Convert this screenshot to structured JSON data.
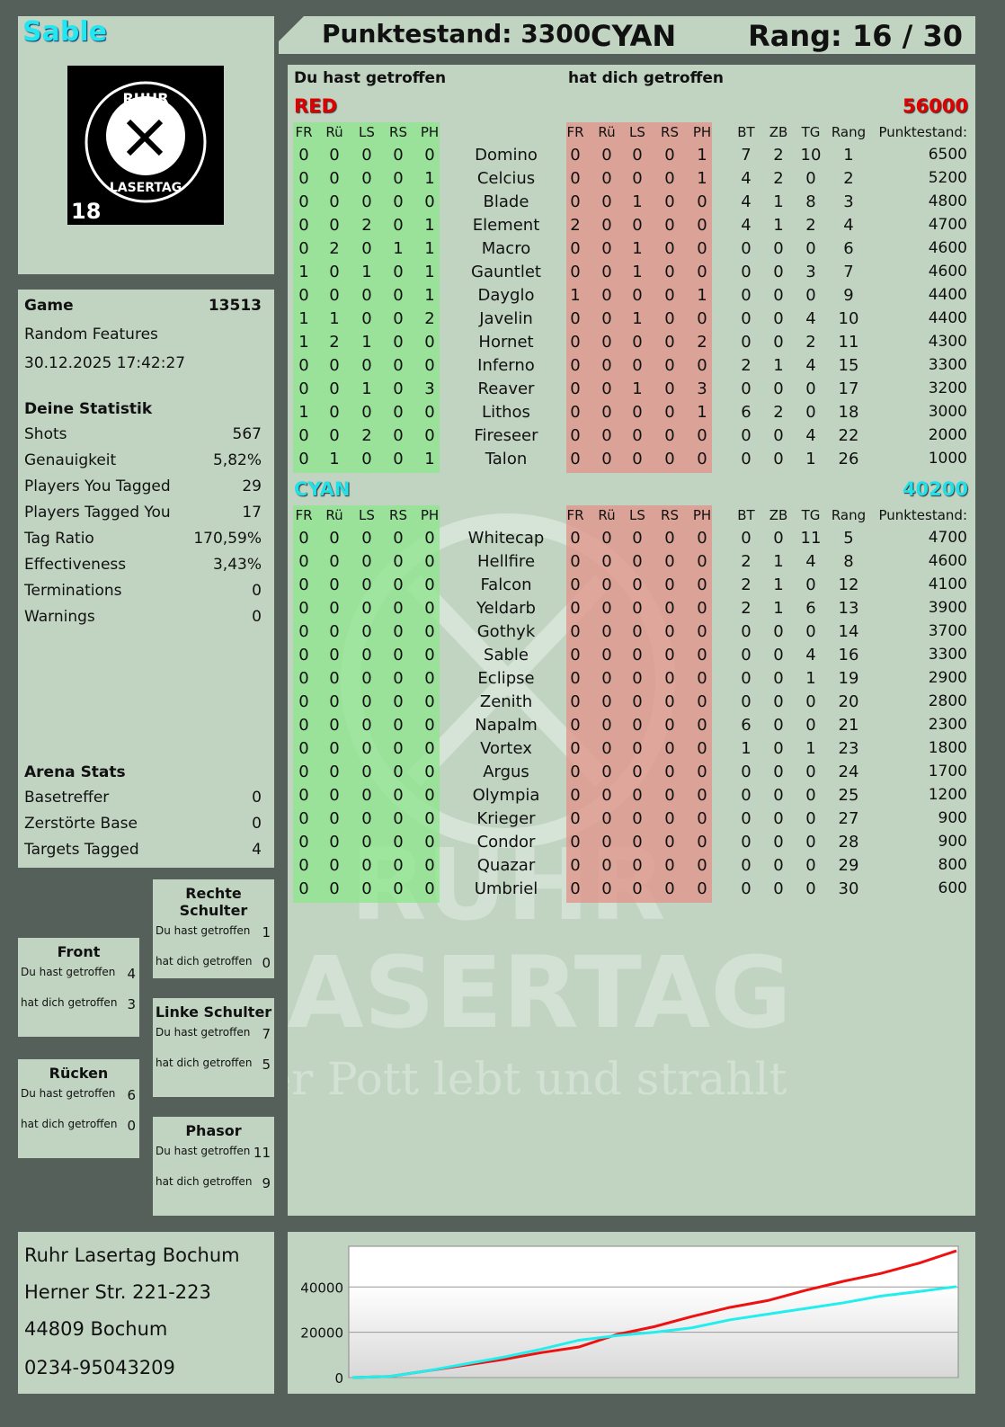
{
  "player": {
    "name": "Sable",
    "logo_text": "RUHR LASERTAG 18"
  },
  "header": {
    "score": "Punktestand: 3300",
    "team": "CYAN",
    "rank": "Rang: 16 / 30"
  },
  "game": {
    "label": "Game",
    "id": "13513",
    "mode": "Random Features",
    "datetime": "30.12.2025 17:42:27"
  },
  "stats": {
    "title": "Deine Statistik",
    "items": [
      [
        "Shots",
        "567"
      ],
      [
        "Genauigkeit",
        "5,82%"
      ],
      [
        "Players You Tagged",
        "29"
      ],
      [
        "Players Tagged You",
        "17"
      ],
      [
        "Tag Ratio",
        "170,59%"
      ],
      [
        "Effectiveness",
        "3,43%"
      ],
      [
        "Terminations",
        "0"
      ],
      [
        "Warnings",
        "0"
      ]
    ]
  },
  "arena": {
    "title": "Arena Stats",
    "items": [
      [
        "Basetreffer",
        "0"
      ],
      [
        "Zerstörte Base",
        "0"
      ],
      [
        "Targets Tagged",
        "4"
      ]
    ]
  },
  "zones": [
    {
      "title": "Rechte Schulter",
      "hit": "1",
      "got": "0"
    },
    {
      "title": "Front",
      "hit": "4",
      "got": "3"
    },
    {
      "title": "Linke Schulter",
      "hit": "7",
      "got": "5"
    },
    {
      "title": "Rücken",
      "hit": "6",
      "got": "0"
    },
    {
      "title": "Phasor",
      "hit": "11",
      "got": "9"
    }
  ],
  "zone_labels": {
    "hit": "Du hast getroffen",
    "got": "hat dich getroffen"
  },
  "table": {
    "you_hit": "Du hast getroffen",
    "hit_you": "hat dich getroffen",
    "cols_hit": [
      "FR",
      "Rü",
      "LS",
      "RS",
      "PH"
    ],
    "cols_stats": [
      "BT",
      "ZB",
      "TG",
      "Rang",
      "Punktestand:"
    ],
    "teams": [
      {
        "name": "RED",
        "score": "56000",
        "color": "#e00000",
        "rows": [
          [
            "Domino",
            [
              0,
              0,
              0,
              0,
              0
            ],
            [
              0,
              0,
              0,
              0,
              1
            ],
            [
              7,
              2,
              10,
              1
            ],
            6500
          ],
          [
            "Celcius",
            [
              0,
              0,
              0,
              0,
              1
            ],
            [
              0,
              0,
              0,
              0,
              1
            ],
            [
              4,
              2,
              0,
              2
            ],
            5200
          ],
          [
            "Blade",
            [
              0,
              0,
              0,
              0,
              0
            ],
            [
              0,
              0,
              1,
              0,
              0
            ],
            [
              4,
              1,
              8,
              3
            ],
            4800
          ],
          [
            "Element",
            [
              0,
              0,
              2,
              0,
              1
            ],
            [
              2,
              0,
              0,
              0,
              0
            ],
            [
              4,
              1,
              2,
              4
            ],
            4700
          ],
          [
            "Macro",
            [
              0,
              2,
              0,
              1,
              1
            ],
            [
              0,
              0,
              1,
              0,
              0
            ],
            [
              0,
              0,
              0,
              6
            ],
            4600
          ],
          [
            "Gauntlet",
            [
              1,
              0,
              1,
              0,
              1
            ],
            [
              0,
              0,
              1,
              0,
              0
            ],
            [
              0,
              0,
              3,
              7
            ],
            4600
          ],
          [
            "Dayglo",
            [
              0,
              0,
              0,
              0,
              1
            ],
            [
              1,
              0,
              0,
              0,
              1
            ],
            [
              0,
              0,
              0,
              9
            ],
            4400
          ],
          [
            "Javelin",
            [
              1,
              1,
              0,
              0,
              2
            ],
            [
              0,
              0,
              1,
              0,
              0
            ],
            [
              0,
              0,
              4,
              10
            ],
            4400
          ],
          [
            "Hornet",
            [
              1,
              2,
              1,
              0,
              0
            ],
            [
              0,
              0,
              0,
              0,
              2
            ],
            [
              0,
              0,
              2,
              11
            ],
            4300
          ],
          [
            "Inferno",
            [
              0,
              0,
              0,
              0,
              0
            ],
            [
              0,
              0,
              0,
              0,
              0
            ],
            [
              2,
              1,
              4,
              15
            ],
            3300
          ],
          [
            "Reaver",
            [
              0,
              0,
              1,
              0,
              3
            ],
            [
              0,
              0,
              1,
              0,
              3
            ],
            [
              0,
              0,
              0,
              17
            ],
            3200
          ],
          [
            "Lithos",
            [
              1,
              0,
              0,
              0,
              0
            ],
            [
              0,
              0,
              0,
              0,
              1
            ],
            [
              6,
              2,
              0,
              18
            ],
            3000
          ],
          [
            "Fireseer",
            [
              0,
              0,
              2,
              0,
              0
            ],
            [
              0,
              0,
              0,
              0,
              0
            ],
            [
              0,
              0,
              4,
              22
            ],
            2000
          ],
          [
            "Talon",
            [
              0,
              1,
              0,
              0,
              1
            ],
            [
              0,
              0,
              0,
              0,
              0
            ],
            [
              0,
              0,
              1,
              26
            ],
            1000
          ]
        ]
      },
      {
        "name": "CYAN",
        "score": "40200",
        "color": "#20e0e8",
        "rows": [
          [
            "Whitecap",
            [
              0,
              0,
              0,
              0,
              0
            ],
            [
              0,
              0,
              0,
              0,
              0
            ],
            [
              0,
              0,
              11,
              5
            ],
            4700
          ],
          [
            "Hellfire",
            [
              0,
              0,
              0,
              0,
              0
            ],
            [
              0,
              0,
              0,
              0,
              0
            ],
            [
              2,
              1,
              4,
              8
            ],
            4600
          ],
          [
            "Falcon",
            [
              0,
              0,
              0,
              0,
              0
            ],
            [
              0,
              0,
              0,
              0,
              0
            ],
            [
              2,
              1,
              0,
              12
            ],
            4100
          ],
          [
            "Yeldarb",
            [
              0,
              0,
              0,
              0,
              0
            ],
            [
              0,
              0,
              0,
              0,
              0
            ],
            [
              2,
              1,
              6,
              13
            ],
            3900
          ],
          [
            "Gothyk",
            [
              0,
              0,
              0,
              0,
              0
            ],
            [
              0,
              0,
              0,
              0,
              0
            ],
            [
              0,
              0,
              0,
              14
            ],
            3700
          ],
          [
            "Sable",
            [
              0,
              0,
              0,
              0,
              0
            ],
            [
              0,
              0,
              0,
              0,
              0
            ],
            [
              0,
              0,
              4,
              16
            ],
            3300
          ],
          [
            "Eclipse",
            [
              0,
              0,
              0,
              0,
              0
            ],
            [
              0,
              0,
              0,
              0,
              0
            ],
            [
              0,
              0,
              1,
              19
            ],
            2900
          ],
          [
            "Zenith",
            [
              0,
              0,
              0,
              0,
              0
            ],
            [
              0,
              0,
              0,
              0,
              0
            ],
            [
              0,
              0,
              0,
              20
            ],
            2800
          ],
          [
            "Napalm",
            [
              0,
              0,
              0,
              0,
              0
            ],
            [
              0,
              0,
              0,
              0,
              0
            ],
            [
              6,
              0,
              0,
              21
            ],
            2300
          ],
          [
            "Vortex",
            [
              0,
              0,
              0,
              0,
              0
            ],
            [
              0,
              0,
              0,
              0,
              0
            ],
            [
              1,
              0,
              1,
              23
            ],
            1800
          ],
          [
            "Argus",
            [
              0,
              0,
              0,
              0,
              0
            ],
            [
              0,
              0,
              0,
              0,
              0
            ],
            [
              0,
              0,
              0,
              24
            ],
            1700
          ],
          [
            "Olympia",
            [
              0,
              0,
              0,
              0,
              0
            ],
            [
              0,
              0,
              0,
              0,
              0
            ],
            [
              0,
              0,
              0,
              25
            ],
            1200
          ],
          [
            "Krieger",
            [
              0,
              0,
              0,
              0,
              0
            ],
            [
              0,
              0,
              0,
              0,
              0
            ],
            [
              0,
              0,
              0,
              27
            ],
            900
          ],
          [
            "Condor",
            [
              0,
              0,
              0,
              0,
              0
            ],
            [
              0,
              0,
              0,
              0,
              0
            ],
            [
              0,
              0,
              0,
              28
            ],
            900
          ],
          [
            "Quazar",
            [
              0,
              0,
              0,
              0,
              0
            ],
            [
              0,
              0,
              0,
              0,
              0
            ],
            [
              0,
              0,
              0,
              29
            ],
            800
          ],
          [
            "Umbriel",
            [
              0,
              0,
              0,
              0,
              0
            ],
            [
              0,
              0,
              0,
              0,
              0
            ],
            [
              0,
              0,
              0,
              30
            ],
            600
          ]
        ]
      }
    ]
  },
  "watermark": {
    "line1": "RUHR",
    "line2": "LASERTAG",
    "slogan": "Der Pott lebt und strahlt"
  },
  "address": [
    "Ruhr Lasertag Bochum",
    "Herner Str. 221-223",
    "44809 Bochum",
    "0234-95043209"
  ],
  "chart_data": {
    "type": "line",
    "ylim": [
      0,
      58000
    ],
    "yticks": [
      "0",
      "20000",
      "40000"
    ],
    "grid": true,
    "series": [
      {
        "color": "#ee1111",
        "values": [
          0,
          500,
          3000,
          5500,
          8000,
          11000,
          13500,
          19000,
          22500,
          27000,
          31000,
          34000,
          38500,
          42500,
          46000,
          50500,
          56000
        ]
      },
      {
        "color": "#22eeee",
        "values": [
          0,
          500,
          3000,
          6000,
          9000,
          12500,
          16500,
          18500,
          20000,
          22000,
          25500,
          28000,
          30500,
          33000,
          36000,
          38000,
          40200
        ]
      }
    ]
  }
}
